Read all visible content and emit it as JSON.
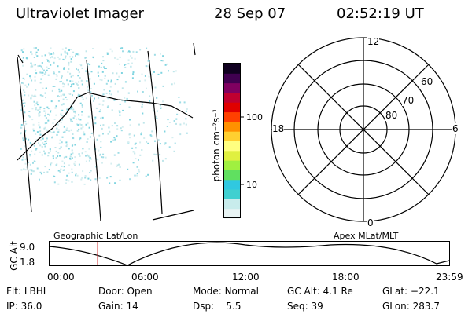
{
  "header": {
    "instrument": "Ultraviolet Imager",
    "date": "28 Sep 07",
    "time": "02:52:19 UT"
  },
  "colorbar": {
    "unit_label": "photon cm⁻²s⁻¹",
    "ticks": [
      "100",
      "10"
    ],
    "colors": [
      "#e8f4f4",
      "#c8ecec",
      "#40d0d0",
      "#30c8e0",
      "#60e060",
      "#a0f040",
      "#e0f040",
      "#ffff80",
      "#ffd030",
      "#ff9000",
      "#ff4000",
      "#e00000",
      "#c00030",
      "#800060",
      "#400050",
      "#100020"
    ]
  },
  "polar_plot": {
    "mlt_labels": {
      "top": "12",
      "bottom": "0",
      "left": "18",
      "right": "6"
    },
    "lat_labels": [
      "60",
      "70",
      "80"
    ]
  },
  "timeline": {
    "ylabel": "GC Alt",
    "yticks": [
      "9.0",
      "1.8"
    ],
    "left_title": "Geographic Lat/Lon",
    "right_title": "Apex MLat/MLT",
    "xticks": [
      "00:00",
      "06:00",
      "12:00",
      "18:00",
      "23:59"
    ],
    "current_time_fraction": 0.121
  },
  "status": {
    "row1": [
      {
        "key": "Flt:",
        "value": "LBHL"
      },
      {
        "key": "Door:",
        "value": "Open"
      },
      {
        "key": "Mode:",
        "value": "Normal"
      },
      {
        "key": "GC Alt:",
        "value": "4.1 Re"
      },
      {
        "key": "GLat:",
        "value": "−22.1"
      }
    ],
    "row2": [
      {
        "key": "IP:",
        "value": "36.0"
      },
      {
        "key": "Gain:",
        "value": "14"
      },
      {
        "key": "Dsp:",
        "value": "5.5"
      },
      {
        "key": "Seq:",
        "value": "39"
      },
      {
        "key": "GLon:",
        "value": "283.7"
      }
    ]
  }
}
